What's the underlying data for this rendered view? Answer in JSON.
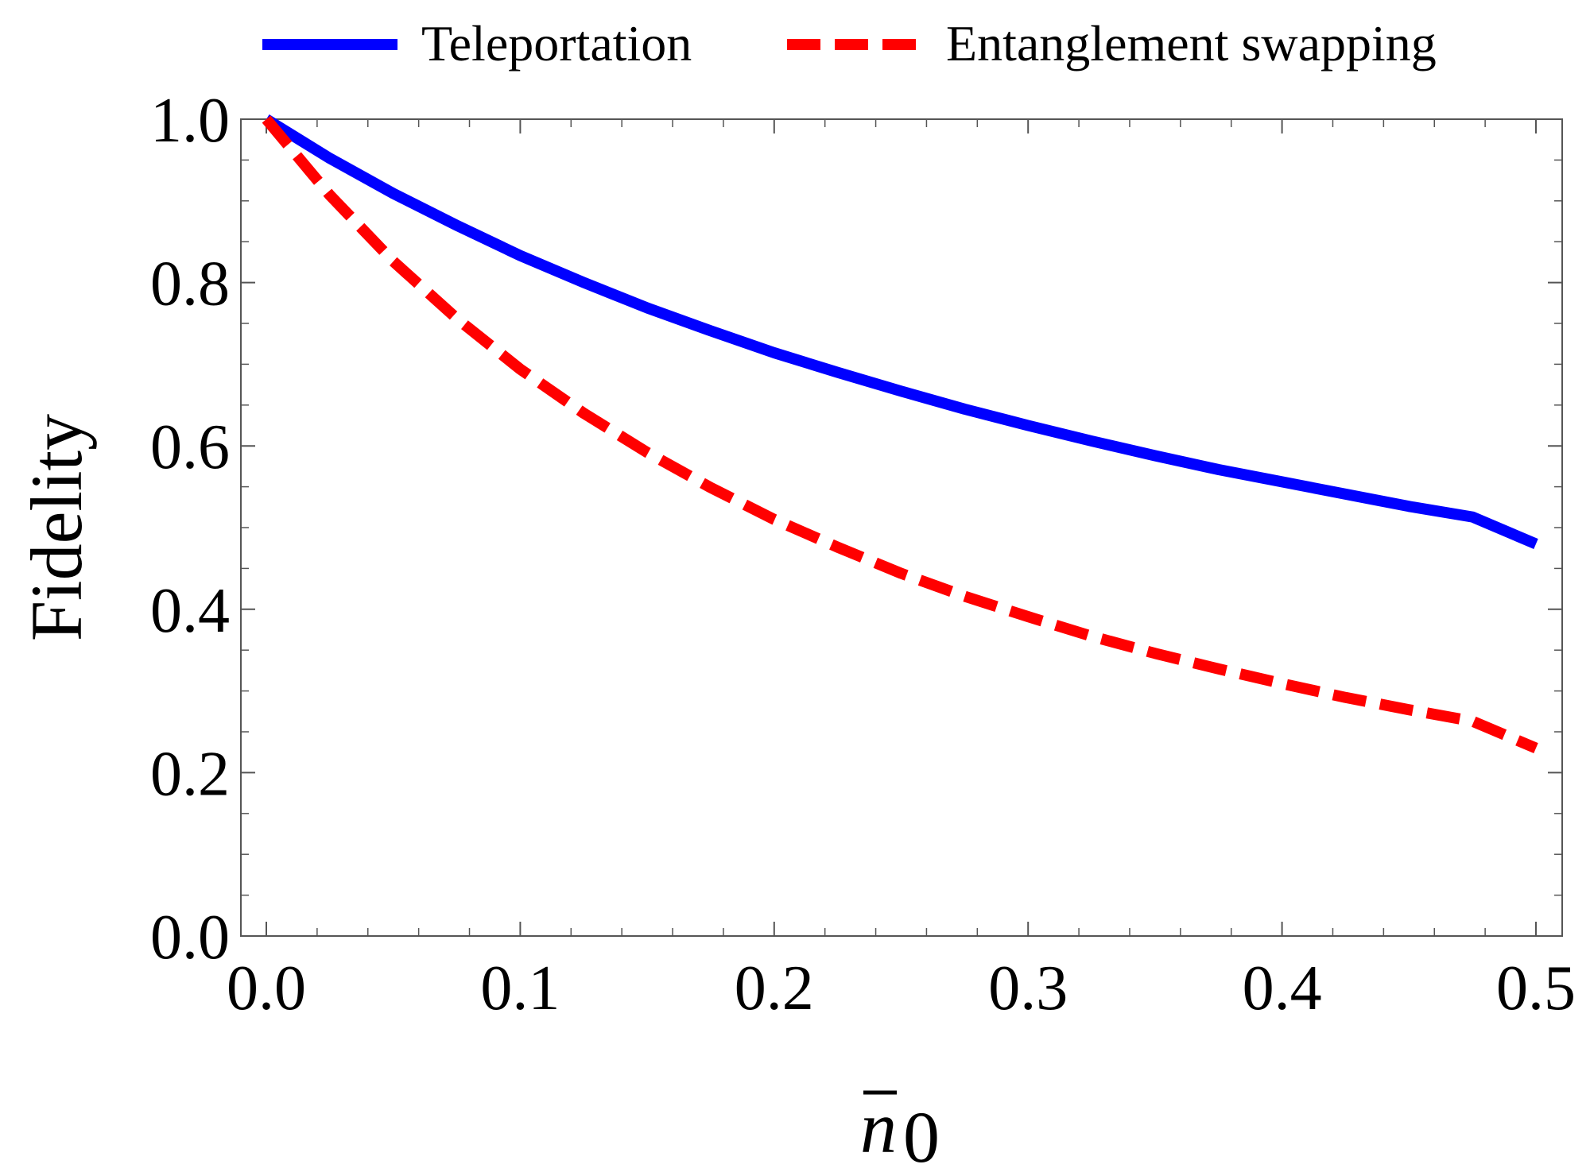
{
  "chart_data": {
    "type": "line",
    "title": "",
    "xlabel": "n̄0",
    "xlabel_parts": {
      "base": "n",
      "subscript": "0"
    },
    "ylabel": "Fidelity",
    "xlim": [
      0.0,
      0.5
    ],
    "ylim": [
      0.0,
      1.0
    ],
    "xticks": [
      "0.0",
      "0.1",
      "0.2",
      "0.3",
      "0.4",
      "0.5"
    ],
    "yticks": [
      "0.0",
      "0.2",
      "0.4",
      "0.6",
      "0.8",
      "1.0"
    ],
    "grid": false,
    "legend_position": "top",
    "x": [
      0.0,
      0.025,
      0.05,
      0.075,
      0.1,
      0.125,
      0.15,
      0.175,
      0.2,
      0.225,
      0.25,
      0.275,
      0.3,
      0.325,
      0.35,
      0.375,
      0.4,
      0.425,
      0.45,
      0.475,
      0.5
    ],
    "series": [
      {
        "name": "Teleportation",
        "color": "#0000ff",
        "style": "solid",
        "values": [
          1.0,
          0.952,
          0.909,
          0.87,
          0.833,
          0.8,
          0.769,
          0.741,
          0.714,
          0.69,
          0.667,
          0.645,
          0.625,
          0.606,
          0.588,
          0.571,
          0.556,
          0.541,
          0.526,
          0.513,
          0.48
        ]
      },
      {
        "name": "Entanglement swapping",
        "color": "#ff0000",
        "style": "dashed",
        "values": [
          1.0,
          0.907,
          0.826,
          0.756,
          0.694,
          0.64,
          0.592,
          0.549,
          0.51,
          0.476,
          0.444,
          0.416,
          0.391,
          0.367,
          0.346,
          0.327,
          0.309,
          0.292,
          0.277,
          0.263,
          0.23
        ]
      }
    ]
  }
}
